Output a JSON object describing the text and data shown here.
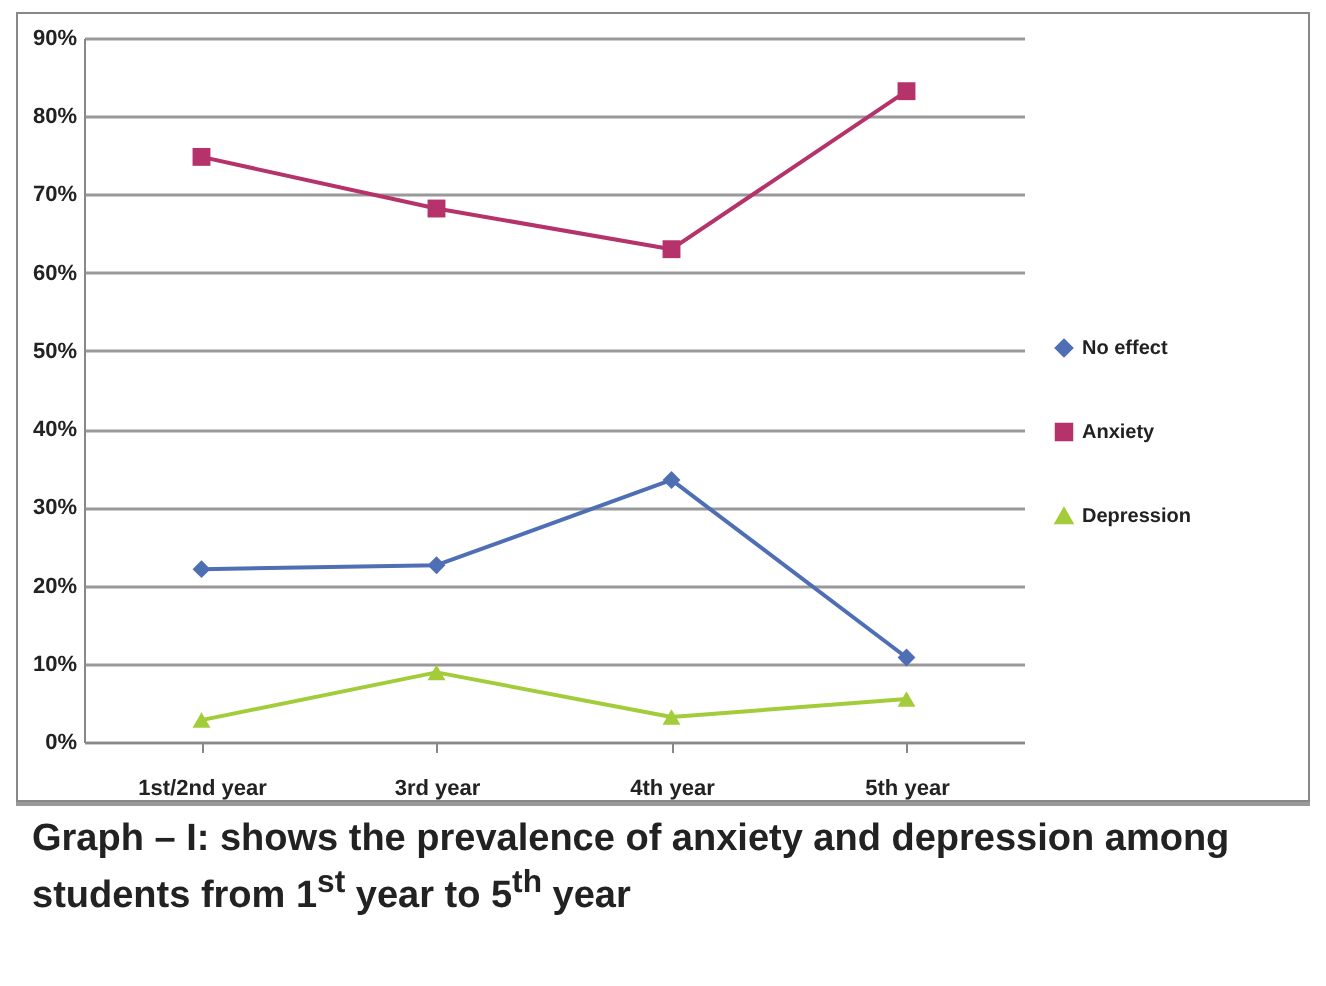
{
  "chart_data": {
    "type": "line",
    "title": "Graph – I: shows the prevalence of anxiety and depression among students from 1$^{st}$ year to 5$^{th}$ year",
    "categories": [
      "1st/2nd year",
      "3rd year",
      "4th year",
      "5th year"
    ],
    "series": [
      {
        "name": "No effect",
        "color": "#4f6fb5",
        "marker": "diamond",
        "values": [
          22.1,
          22.6,
          33.5,
          10.8
        ]
      },
      {
        "name": "Anxiety",
        "color": "#b5326b",
        "marker": "square",
        "values": [
          74.8,
          68.2,
          63.0,
          83.2
        ]
      },
      {
        "name": "Depression",
        "color": "#a3cc3a",
        "marker": "triangle",
        "values": [
          2.8,
          8.9,
          3.2,
          5.5
        ]
      }
    ],
    "ylim": [
      0,
      90
    ],
    "yticks": [
      {
        "value": 0,
        "label": "0%"
      },
      {
        "value": 10,
        "label": "10%"
      },
      {
        "value": 20,
        "label": "20%"
      },
      {
        "value": 30,
        "label": "30%"
      },
      {
        "value": 40,
        "label": "40%"
      },
      {
        "value": 50,
        "label": "50%"
      },
      {
        "value": 60,
        "label": "60%"
      },
      {
        "value": 70,
        "label": "70%"
      },
      {
        "value": 80,
        "label": "80%"
      },
      {
        "value": 90,
        "label": "90%"
      }
    ],
    "grid": "y",
    "legend": "right",
    "line_style": "solid"
  }
}
